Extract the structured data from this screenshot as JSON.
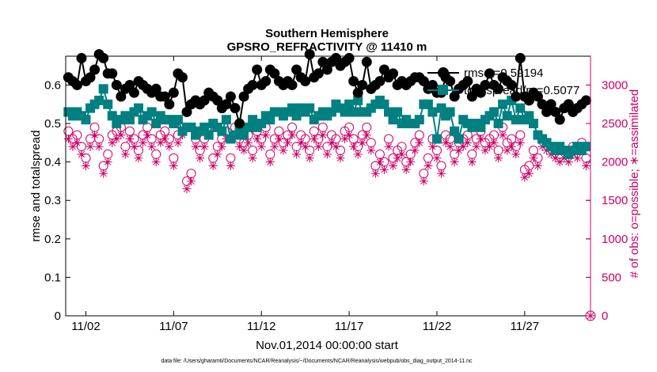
{
  "chart_data": {
    "type": "line",
    "title": "Southern Hemisphere",
    "subtitle": "GPSRO_REFRACTIVITY @ 11410 m",
    "xlabel": "Nov.01,2014 00:00:00 start",
    "ylabel_left": "rmse and totalspread",
    "ylabel_right": "# of obs: o=possible; ∗=assimilated",
    "footnote": "data file: /Users/gharamti/Documents/NCAR/Reanalysis/~/Documents/NCAR/Reanalysis/webpub/obs_diag_output_2014-11.nc",
    "x_ticks": [
      "11/02",
      "11/07",
      "11/12",
      "11/17",
      "11/22",
      "11/27"
    ],
    "x_tick_days": [
      2,
      7,
      12,
      17,
      22,
      27
    ],
    "xlim": [
      0.85,
      30.75
    ],
    "ylim_left": [
      0,
      0.675
    ],
    "ylim_right": [
      0,
      3375
    ],
    "yticks_left": [
      "0",
      "0.1",
      "0.2",
      "0.3",
      "0.4",
      "0.5",
      "0.6"
    ],
    "yticks_right": [
      "0",
      "500",
      "1000",
      "1500",
      "2000",
      "2500",
      "3000"
    ],
    "grid": false,
    "legend_position": "top-right",
    "colors": {
      "rmse": "#000000",
      "spread": "#008080",
      "obs": "#cc0066"
    },
    "series": [
      {
        "name": "rmse",
        "legend_label": "rmse =0.59194",
        "x": [
          1.0,
          1.25,
          1.5,
          1.75,
          2.0,
          2.25,
          2.5,
          2.75,
          3.0,
          3.25,
          3.5,
          3.75,
          4.0,
          4.25,
          4.5,
          4.75,
          5.0,
          5.25,
          5.5,
          5.75,
          6.0,
          6.25,
          6.5,
          6.75,
          7.0,
          7.25,
          7.5,
          7.75,
          8.0,
          8.25,
          8.5,
          8.75,
          9.0,
          9.25,
          9.5,
          9.75,
          10.0,
          10.25,
          10.5,
          10.75,
          11.0,
          11.25,
          11.5,
          11.75,
          12.0,
          12.25,
          12.5,
          12.75,
          13.0,
          13.25,
          13.5,
          13.75,
          14.0,
          14.25,
          14.5,
          14.75,
          15.0,
          15.25,
          15.5,
          15.75,
          16.0,
          16.25,
          16.5,
          16.75,
          17.0,
          17.25,
          17.5,
          17.75,
          18.0,
          18.25,
          18.5,
          18.75,
          19.0,
          19.25,
          19.5,
          19.75,
          20.0,
          20.25,
          20.5,
          20.75,
          21.0,
          21.25,
          21.5,
          21.75,
          22.0,
          22.25,
          22.5,
          22.75,
          23.0,
          23.25,
          23.5,
          23.75,
          24.0,
          24.25,
          24.5,
          24.75,
          25.0,
          25.25,
          25.5,
          25.75,
          26.0,
          26.25,
          26.5,
          26.75,
          27.0,
          27.25,
          27.5,
          27.75,
          28.0,
          28.25,
          28.5,
          28.75,
          29.0,
          29.25,
          29.5,
          29.75,
          30.0,
          30.25,
          30.5
        ],
        "values": [
          0.62,
          0.61,
          0.6,
          0.67,
          0.61,
          0.62,
          0.64,
          0.68,
          0.67,
          0.63,
          0.63,
          0.6,
          0.57,
          0.59,
          0.6,
          0.58,
          0.61,
          0.6,
          0.59,
          0.58,
          0.59,
          0.57,
          0.57,
          0.55,
          0.58,
          0.63,
          0.62,
          0.53,
          0.55,
          0.56,
          0.55,
          0.56,
          0.58,
          0.57,
          0.56,
          0.54,
          0.55,
          0.57,
          0.54,
          0.5,
          0.57,
          0.59,
          0.6,
          0.64,
          0.6,
          0.61,
          0.64,
          0.63,
          0.61,
          0.6,
          0.61,
          0.6,
          0.64,
          0.62,
          0.61,
          0.68,
          0.62,
          0.63,
          0.66,
          0.64,
          0.66,
          0.67,
          0.65,
          0.66,
          0.67,
          0.61,
          0.58,
          0.6,
          0.66,
          0.59,
          0.6,
          0.61,
          0.64,
          0.62,
          0.63,
          0.6,
          0.61,
          0.6,
          0.61,
          0.62,
          0.62,
          0.61,
          0.59,
          0.6,
          0.58,
          0.58,
          0.62,
          0.61,
          0.57,
          0.59,
          0.6,
          0.61,
          0.57,
          0.59,
          0.58,
          0.6,
          0.63,
          0.6,
          0.59,
          0.62,
          0.61,
          0.6,
          0.57,
          0.67,
          0.57,
          0.56,
          0.58,
          0.57,
          0.55,
          0.53,
          0.55,
          0.53,
          0.51,
          0.54,
          0.55,
          0.53,
          0.54,
          0.55,
          0.56
        ]
      },
      {
        "name": "totalspread",
        "legend_label": "totalspread/pr=0.5077",
        "x": [
          1.0,
          1.25,
          1.5,
          1.75,
          2.0,
          2.25,
          2.5,
          2.75,
          3.0,
          3.25,
          3.5,
          3.75,
          4.0,
          4.25,
          4.5,
          4.75,
          5.0,
          5.25,
          5.5,
          5.75,
          6.0,
          6.25,
          6.5,
          6.75,
          7.0,
          7.25,
          7.5,
          7.75,
          8.0,
          8.25,
          8.5,
          8.75,
          9.0,
          9.25,
          9.5,
          9.75,
          10.0,
          10.25,
          10.5,
          10.75,
          11.0,
          11.25,
          11.5,
          11.75,
          12.0,
          12.25,
          12.5,
          12.75,
          13.0,
          13.25,
          13.5,
          13.75,
          14.0,
          14.25,
          14.5,
          14.75,
          15.0,
          15.25,
          15.5,
          15.75,
          16.0,
          16.25,
          16.5,
          16.75,
          17.0,
          17.25,
          17.5,
          17.75,
          18.0,
          18.25,
          18.5,
          18.75,
          19.0,
          19.25,
          19.5,
          19.75,
          20.0,
          20.25,
          20.5,
          20.75,
          21.0,
          21.25,
          21.5,
          21.75,
          22.0,
          22.25,
          22.5,
          22.75,
          23.0,
          23.25,
          23.5,
          23.75,
          24.0,
          24.25,
          24.5,
          24.75,
          25.0,
          25.25,
          25.5,
          25.75,
          26.0,
          26.25,
          26.5,
          26.75,
          27.0,
          27.25,
          27.5,
          27.75,
          28.0,
          28.25,
          28.5,
          28.75,
          29.0,
          29.25,
          29.5,
          29.75,
          30.0,
          30.25,
          30.5
        ],
        "values": [
          0.53,
          0.52,
          0.53,
          0.52,
          0.51,
          0.54,
          0.55,
          0.56,
          0.59,
          0.55,
          0.52,
          0.5,
          0.51,
          0.52,
          0.51,
          0.53,
          0.54,
          0.51,
          0.52,
          0.53,
          0.5,
          0.52,
          0.51,
          0.51,
          0.5,
          0.51,
          0.48,
          0.49,
          0.49,
          0.47,
          0.48,
          0.49,
          0.47,
          0.5,
          0.49,
          0.48,
          0.51,
          0.46,
          0.47,
          0.49,
          0.47,
          0.49,
          0.51,
          0.49,
          0.5,
          0.52,
          0.51,
          0.53,
          0.53,
          0.52,
          0.53,
          0.54,
          0.52,
          0.54,
          0.53,
          0.54,
          0.51,
          0.52,
          0.53,
          0.52,
          0.53,
          0.55,
          0.54,
          0.53,
          0.55,
          0.53,
          0.56,
          0.53,
          0.53,
          0.54,
          0.55,
          0.56,
          0.55,
          0.53,
          0.51,
          0.53,
          0.5,
          0.51,
          0.5,
          0.5,
          0.51,
          0.55,
          0.55,
          0.53,
          0.46,
          0.54,
          0.52,
          0.53,
          0.48,
          0.46,
          0.51,
          0.5,
          0.49,
          0.5,
          0.49,
          0.51,
          0.52,
          0.53,
          0.5,
          0.55,
          0.52,
          0.56,
          0.51,
          0.54,
          0.51,
          0.52,
          0.5,
          0.47,
          0.46,
          0.45,
          0.44,
          0.43,
          0.44,
          0.43,
          0.42,
          0.43,
          0.44,
          0.43,
          0.44
        ]
      },
      {
        "name": "possible",
        "marker": "o",
        "x": [
          1.0,
          1.25,
          1.5,
          1.75,
          2.0,
          2.25,
          2.5,
          2.75,
          3.0,
          3.25,
          3.5,
          3.75,
          4.0,
          4.25,
          4.5,
          4.75,
          5.0,
          5.25,
          5.5,
          5.75,
          6.0,
          6.25,
          6.5,
          6.75,
          7.0,
          7.25,
          7.5,
          7.75,
          8.0,
          8.25,
          8.5,
          8.75,
          9.0,
          9.25,
          9.5,
          9.75,
          10.0,
          10.25,
          10.5,
          10.75,
          11.0,
          11.25,
          11.5,
          11.75,
          12.0,
          12.25,
          12.5,
          12.75,
          13.0,
          13.25,
          13.5,
          13.75,
          14.0,
          14.25,
          14.5,
          14.75,
          15.0,
          15.25,
          15.5,
          15.75,
          16.0,
          16.25,
          16.5,
          16.75,
          17.0,
          17.25,
          17.5,
          17.75,
          18.0,
          18.25,
          18.5,
          18.75,
          19.0,
          19.25,
          19.5,
          19.75,
          20.0,
          20.25,
          20.5,
          20.75,
          21.0,
          21.25,
          21.5,
          21.75,
          22.0,
          22.25,
          22.5,
          22.75,
          23.0,
          23.25,
          23.5,
          23.75,
          24.0,
          24.25,
          24.5,
          24.75,
          25.0,
          25.25,
          25.5,
          25.75,
          26.0,
          26.25,
          26.5,
          26.75,
          27.0,
          27.25,
          27.5,
          27.75,
          28.0,
          28.25,
          28.5,
          28.75,
          29.0,
          29.25,
          29.5,
          29.75,
          30.0,
          30.25,
          30.5
        ],
        "values": [
          2400,
          2300,
          2350,
          2200,
          2050,
          2300,
          2450,
          2300,
          1950,
          2100,
          2350,
          2400,
          2450,
          2200,
          2400,
          2300,
          2150,
          2350,
          2450,
          2300,
          2100,
          2350,
          2400,
          2300,
          2050,
          2350,
          2450,
          1750,
          1850,
          2300,
          2150,
          2300,
          2450,
          2050,
          2200,
          2300,
          2400,
          2050,
          2450,
          2300,
          2250,
          2350,
          2150,
          2400,
          2300,
          2450,
          2100,
          2300,
          2400,
          2250,
          2350,
          2450,
          2200,
          2350,
          2300,
          2150,
          2400,
          2300,
          2450,
          2200,
          2350,
          2300,
          2150,
          2400,
          2450,
          2300,
          2200,
          2350,
          2450,
          2250,
          1950,
          2100,
          2000,
          2300,
          2050,
          2150,
          2200,
          2000,
          2100,
          2250,
          2350,
          1850,
          2050,
          2300,
          2150,
          1950,
          2350,
          2300,
          2100,
          2250,
          2300,
          2350,
          2100,
          2300,
          2400,
          2250,
          2300,
          2350,
          2150,
          2450,
          2250,
          2300,
          2200,
          2350,
          1900,
          1950,
          2150,
          2050,
          2300,
          2250,
          2200,
          2150,
          2100,
          2150,
          2100,
          2200,
          2150,
          2250,
          2050
        ]
      },
      {
        "name": "assimilated",
        "marker": "*",
        "x": [
          1.0,
          1.25,
          1.5,
          1.75,
          2.0,
          2.25,
          2.5,
          2.75,
          3.0,
          3.25,
          3.5,
          3.75,
          4.0,
          4.25,
          4.5,
          4.75,
          5.0,
          5.25,
          5.5,
          5.75,
          6.0,
          6.25,
          6.5,
          6.75,
          7.0,
          7.25,
          7.5,
          7.75,
          8.0,
          8.25,
          8.5,
          8.75,
          9.0,
          9.25,
          9.5,
          9.75,
          10.0,
          10.25,
          10.5,
          10.75,
          11.0,
          11.25,
          11.5,
          11.75,
          12.0,
          12.25,
          12.5,
          12.75,
          13.0,
          13.25,
          13.5,
          13.75,
          14.0,
          14.25,
          14.5,
          14.75,
          15.0,
          15.25,
          15.5,
          15.75,
          16.0,
          16.25,
          16.5,
          16.75,
          17.0,
          17.25,
          17.5,
          17.75,
          18.0,
          18.25,
          18.5,
          18.75,
          19.0,
          19.25,
          19.5,
          19.75,
          20.0,
          20.25,
          20.5,
          20.75,
          21.0,
          21.25,
          21.5,
          21.75,
          22.0,
          22.25,
          22.5,
          22.75,
          23.0,
          23.25,
          23.5,
          23.75,
          24.0,
          24.25,
          24.5,
          24.75,
          25.0,
          25.25,
          25.5,
          25.75,
          26.0,
          26.25,
          26.5,
          26.75,
          27.0,
          27.25,
          27.5,
          27.75,
          28.0,
          28.25,
          28.5,
          28.75,
          29.0,
          29.25,
          29.5,
          29.75,
          30.0,
          30.25,
          30.5
        ],
        "values": [
          2300,
          2200,
          2250,
          2100,
          1950,
          2200,
          2350,
          2200,
          1850,
          2000,
          2250,
          2300,
          2350,
          2100,
          2300,
          2200,
          2050,
          2250,
          2350,
          2200,
          2000,
          2250,
          2300,
          2200,
          1950,
          2250,
          2350,
          1650,
          1750,
          2200,
          2050,
          2200,
          2350,
          1950,
          2100,
          2200,
          2300,
          1950,
          2350,
          2200,
          2150,
          2250,
          2050,
          2300,
          2200,
          2350,
          2000,
          2200,
          2300,
          2150,
          2250,
          2350,
          2100,
          2250,
          2200,
          2050,
          2300,
          2200,
          2350,
          2100,
          2250,
          2200,
          2050,
          2300,
          2350,
          2200,
          2100,
          2250,
          2350,
          2150,
          1850,
          2000,
          1900,
          2200,
          1950,
          2050,
          2100,
          1900,
          2000,
          2150,
          2250,
          1750,
          1950,
          2200,
          2050,
          1850,
          2250,
          2200,
          2000,
          2150,
          2200,
          2250,
          2000,
          2200,
          2300,
          2150,
          2200,
          2250,
          2050,
          2350,
          2150,
          2200,
          2100,
          2250,
          1800,
          1850,
          2050,
          1950,
          2200,
          2150,
          2100,
          2050,
          2000,
          2050,
          2000,
          2100,
          2050,
          2150,
          1950
        ]
      }
    ]
  }
}
